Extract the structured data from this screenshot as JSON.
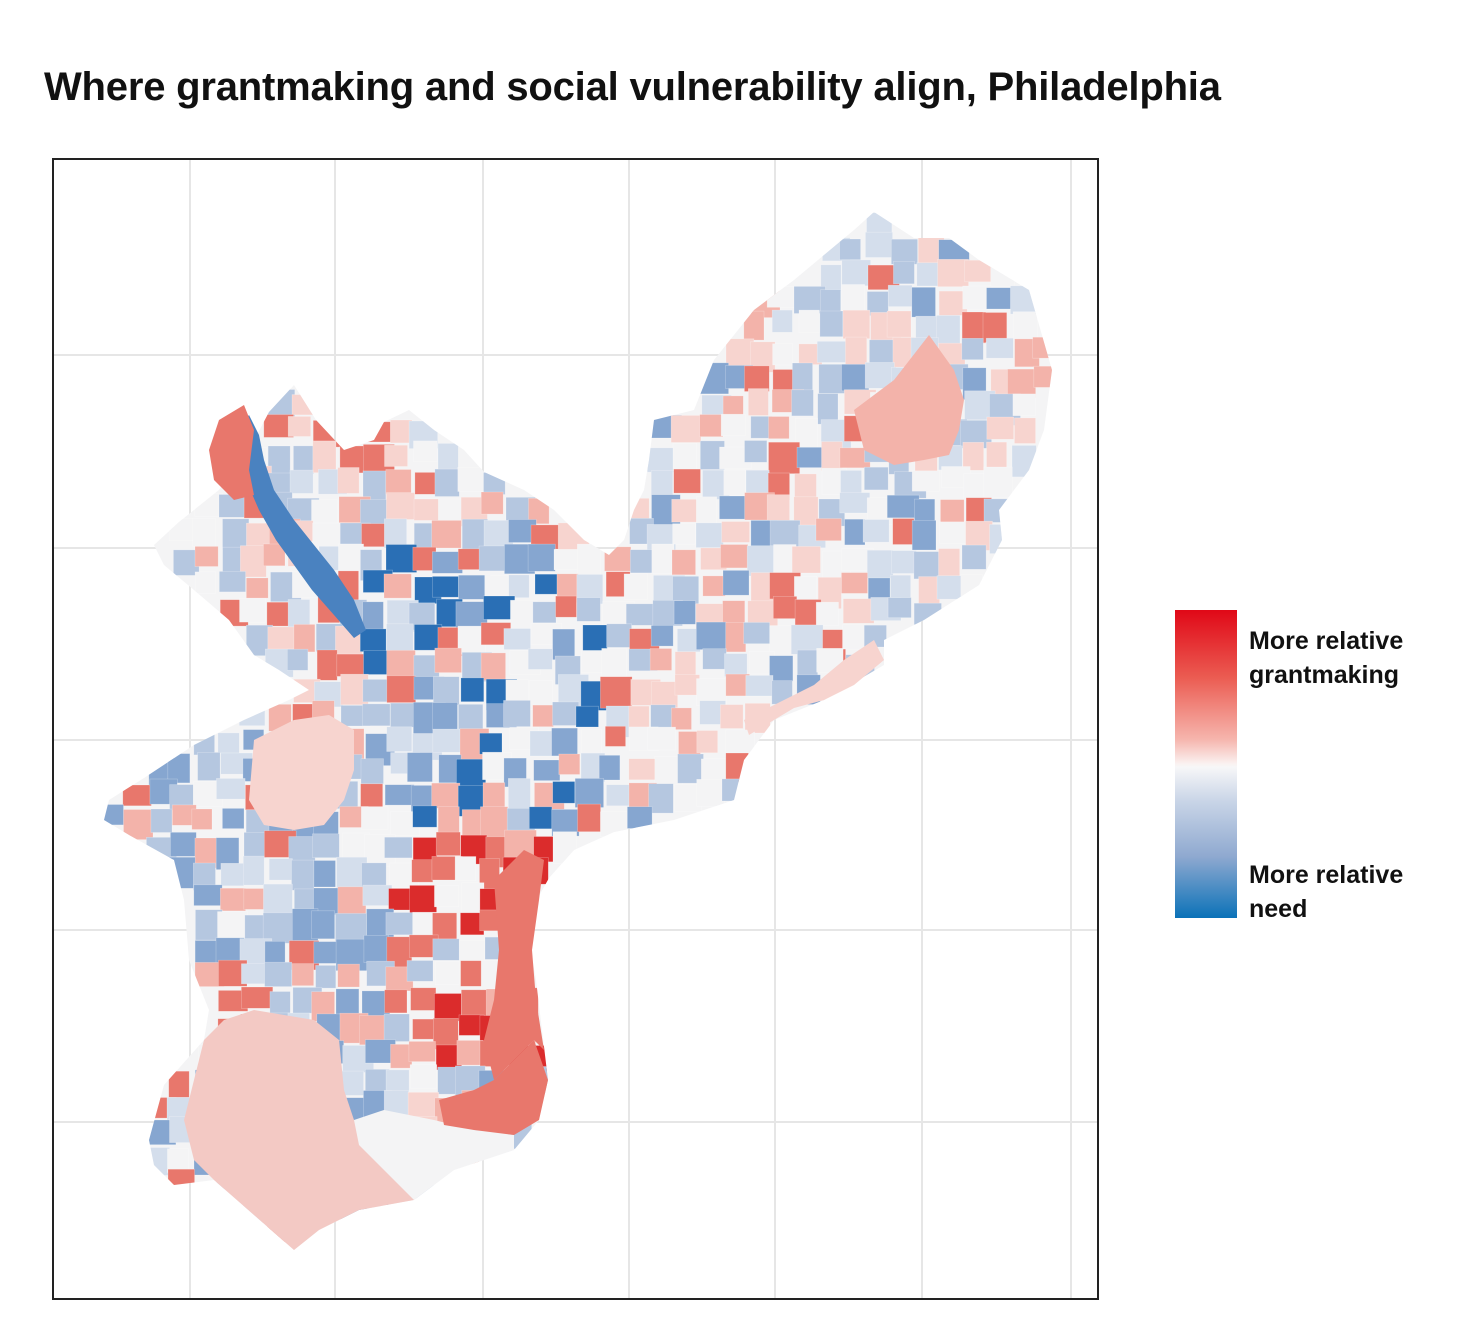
{
  "title": "Where grantmaking and social vulnerability align, Philadelphia",
  "map": {
    "region": "Philadelphia",
    "grid": true,
    "fill_scale": {
      "high_label": [
        "More relative",
        "grantmaking"
      ],
      "low_label": [
        "More relative",
        "need"
      ],
      "high_color": "#e00817",
      "mid_color": "#f7f7f8",
      "low_color": "#0b72b8"
    },
    "tract_palette": {
      "strong_red": "#db2c2c",
      "red": "#e8776c",
      "light_red": "#f3b3aa",
      "pale_red": "#f7d4cf",
      "neutral": "#f4f4f5",
      "pale_blue": "#d4deec",
      "light_blue": "#b5c7e0",
      "blue": "#86a6d0",
      "strong_blue": "#4a82c0",
      "deep_blue": "#2a6fb5"
    }
  }
}
